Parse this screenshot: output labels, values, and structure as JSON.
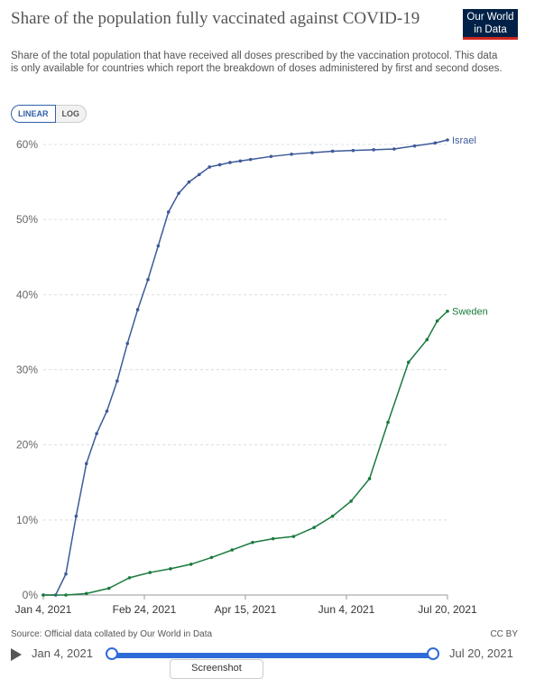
{
  "header": {
    "title": "Share of the population fully vaccinated against COVID-19",
    "subtitle": "Share of the total population that have received all doses prescribed by the vaccination protocol. This data is only available for countries which report the breakdown of doses administered by first and second doses.",
    "logo_line1": "Our World",
    "logo_line2": "in Data"
  },
  "controls": {
    "linear_label": "LINEAR",
    "log_label": "LOG"
  },
  "footer": {
    "source": "Source: Official data collated by Our World in Data",
    "license": "CC BY",
    "timeline_start": "Jan 4, 2021",
    "timeline_end": "Jul 20, 2021",
    "screenshot_label": "Screenshot"
  },
  "colors": {
    "israel": "#3d5a99",
    "sweden": "#1a7a3e",
    "grid": "#dddddd"
  },
  "chart_data": {
    "type": "line",
    "title": "Share of the population fully vaccinated against COVID-19",
    "xlabel": "",
    "ylabel": "",
    "x_ticks": [
      "Jan 4, 2021",
      "Feb 24, 2021",
      "Apr 15, 2021",
      "Jun 4, 2021",
      "Jul 20, 2021"
    ],
    "y_ticks": [
      "0%",
      "10%",
      "20%",
      "30%",
      "40%",
      "50%",
      "60%"
    ],
    "xlim": [
      "2021-01-04",
      "2021-07-20"
    ],
    "ylim": [
      0,
      60
    ],
    "grid": true,
    "legend": "line-end labels",
    "series": [
      {
        "name": "Israel",
        "x": [
          "2021-01-04",
          "2021-01-10",
          "2021-01-15",
          "2021-01-20",
          "2021-01-25",
          "2021-01-30",
          "2021-02-04",
          "2021-02-09",
          "2021-02-14",
          "2021-02-19",
          "2021-02-24",
          "2021-03-01",
          "2021-03-06",
          "2021-03-11",
          "2021-03-16",
          "2021-03-21",
          "2021-03-26",
          "2021-03-31",
          "2021-04-05",
          "2021-04-10",
          "2021-04-15",
          "2021-04-25",
          "2021-05-05",
          "2021-05-15",
          "2021-05-25",
          "2021-06-04",
          "2021-06-14",
          "2021-06-24",
          "2021-07-04",
          "2021-07-14",
          "2021-07-20"
        ],
        "y": [
          0,
          0,
          2.8,
          10.5,
          17.5,
          21.5,
          24.5,
          28.5,
          33.5,
          38,
          42,
          46.5,
          51,
          53.5,
          55,
          56,
          57,
          57.3,
          57.6,
          57.8,
          58,
          58.4,
          58.7,
          58.9,
          59.1,
          59.2,
          59.3,
          59.4,
          59.8,
          60.2,
          60.6
        ]
      },
      {
        "name": "Sweden",
        "x": [
          "2021-01-04",
          "2021-01-15",
          "2021-01-25",
          "2021-02-05",
          "2021-02-15",
          "2021-02-25",
          "2021-03-07",
          "2021-03-17",
          "2021-03-27",
          "2021-04-06",
          "2021-04-16",
          "2021-04-26",
          "2021-05-06",
          "2021-05-16",
          "2021-05-25",
          "2021-06-03",
          "2021-06-12",
          "2021-06-21",
          "2021-07-01",
          "2021-07-10",
          "2021-07-15",
          "2021-07-20"
        ],
        "y": [
          0,
          0,
          0.2,
          0.9,
          2.3,
          3.0,
          3.5,
          4.1,
          5.0,
          6.0,
          7.0,
          7.5,
          7.8,
          9.0,
          10.5,
          12.5,
          15.5,
          23,
          31,
          34,
          36.5,
          37.8
        ]
      }
    ]
  }
}
